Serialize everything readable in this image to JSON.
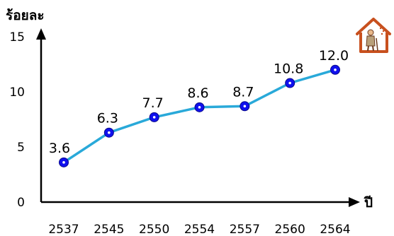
{
  "chart_data": {
    "type": "line",
    "x": [
      "2537",
      "2545",
      "2550",
      "2554",
      "2557",
      "2560",
      "2564"
    ],
    "series": [
      {
        "values": [
          3.6,
          6.3,
          7.7,
          8.6,
          8.7,
          10.8,
          12.0
        ]
      }
    ],
    "data_labels": [
      "3.6",
      "6.3",
      "7.7",
      "8.6",
      "8.7",
      "10.8",
      "12.0"
    ],
    "ylabel": "ร้อยละ",
    "xlabel": "ปี",
    "y_ticks": [
      "0",
      "5",
      "10",
      "15"
    ],
    "ylim": [
      0,
      15
    ],
    "grid": false,
    "colors": {
      "line": "#29A9D9",
      "marker_fill": "#1010EE",
      "marker_center": "#FFFFFF",
      "axis": "#000000",
      "icon": "#C8501E"
    },
    "icon": "elderly-person-house-icon"
  }
}
